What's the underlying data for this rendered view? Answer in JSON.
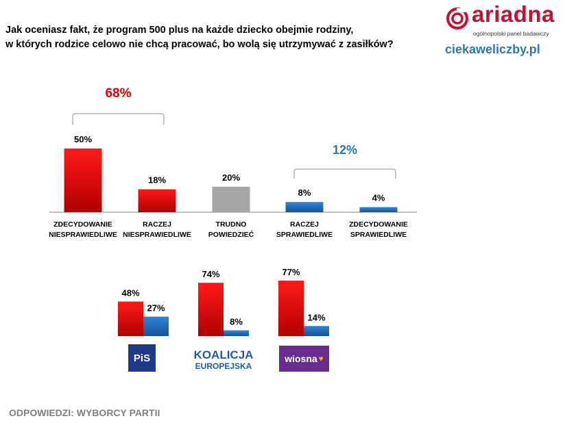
{
  "title_lines": [
    "Jak oceniasz fakt, że program 500 plus na każde dziecko obejmie rodziny,",
    "w  których rodzice celowo nie chcą pracować, bo wolą się utrzymywać z zasiłków?"
  ],
  "brand": {
    "name": "ariadna",
    "subtitle": "ogólnopolski panel badawczy",
    "site": "ciekaweliczby.pl"
  },
  "footer": "ODPOWIEDZI: WYBORCY PARTII",
  "party_logos": {
    "pis": "PiS",
    "ko_line1": "KOALICJA",
    "ko_line2": "EUROPEJSKA",
    "wiosna": "wiosna"
  },
  "colors": {
    "red": "#e00000",
    "gray": "#a6a6a6",
    "blue": "#1f6fc0",
    "red_text": "#e00000",
    "blue_text": "#2e75b6"
  },
  "chart_data": [
    {
      "type": "bar",
      "categories": [
        [
          "ZDECYDOWANIE",
          "NIESPRAWIEDLIWE"
        ],
        [
          "RACZEJ",
          "NIESPRAWIEDLIWE"
        ],
        [
          "TRUDNO",
          "POWIEDZIEĆ"
        ],
        [
          "RACZEJ",
          "SPRAWIEDLIWE"
        ],
        [
          "ZDECYDOWANIE",
          "SPRAWIEDLIWE"
        ]
      ],
      "values": [
        50,
        18,
        20,
        8,
        4
      ],
      "value_labels": [
        "50%",
        "18%",
        "20%",
        "8%",
        "4%"
      ],
      "bar_colors": [
        "red",
        "red",
        "gray",
        "blue",
        "blue"
      ],
      "ylim": [
        0,
        50
      ],
      "grid": false,
      "annotations": [
        {
          "text": "68%",
          "spans": [
            0,
            1
          ],
          "color": "red"
        },
        {
          "text": "12%",
          "spans": [
            3,
            4
          ],
          "color": "blue"
        }
      ]
    },
    {
      "type": "bar",
      "categories": [
        "PiS",
        "KOALICJA EUROPEJSKA",
        "wiosna"
      ],
      "series": [
        {
          "values": [
            48,
            74,
            77
          ],
          "labels": [
            "48%",
            "74%",
            "77%"
          ],
          "color": "red"
        },
        {
          "values": [
            27,
            8,
            14
          ],
          "labels": [
            "27%",
            "8%",
            "14%"
          ],
          "color": "blue"
        }
      ],
      "ylim": [
        0,
        77
      ],
      "grid": false
    }
  ]
}
